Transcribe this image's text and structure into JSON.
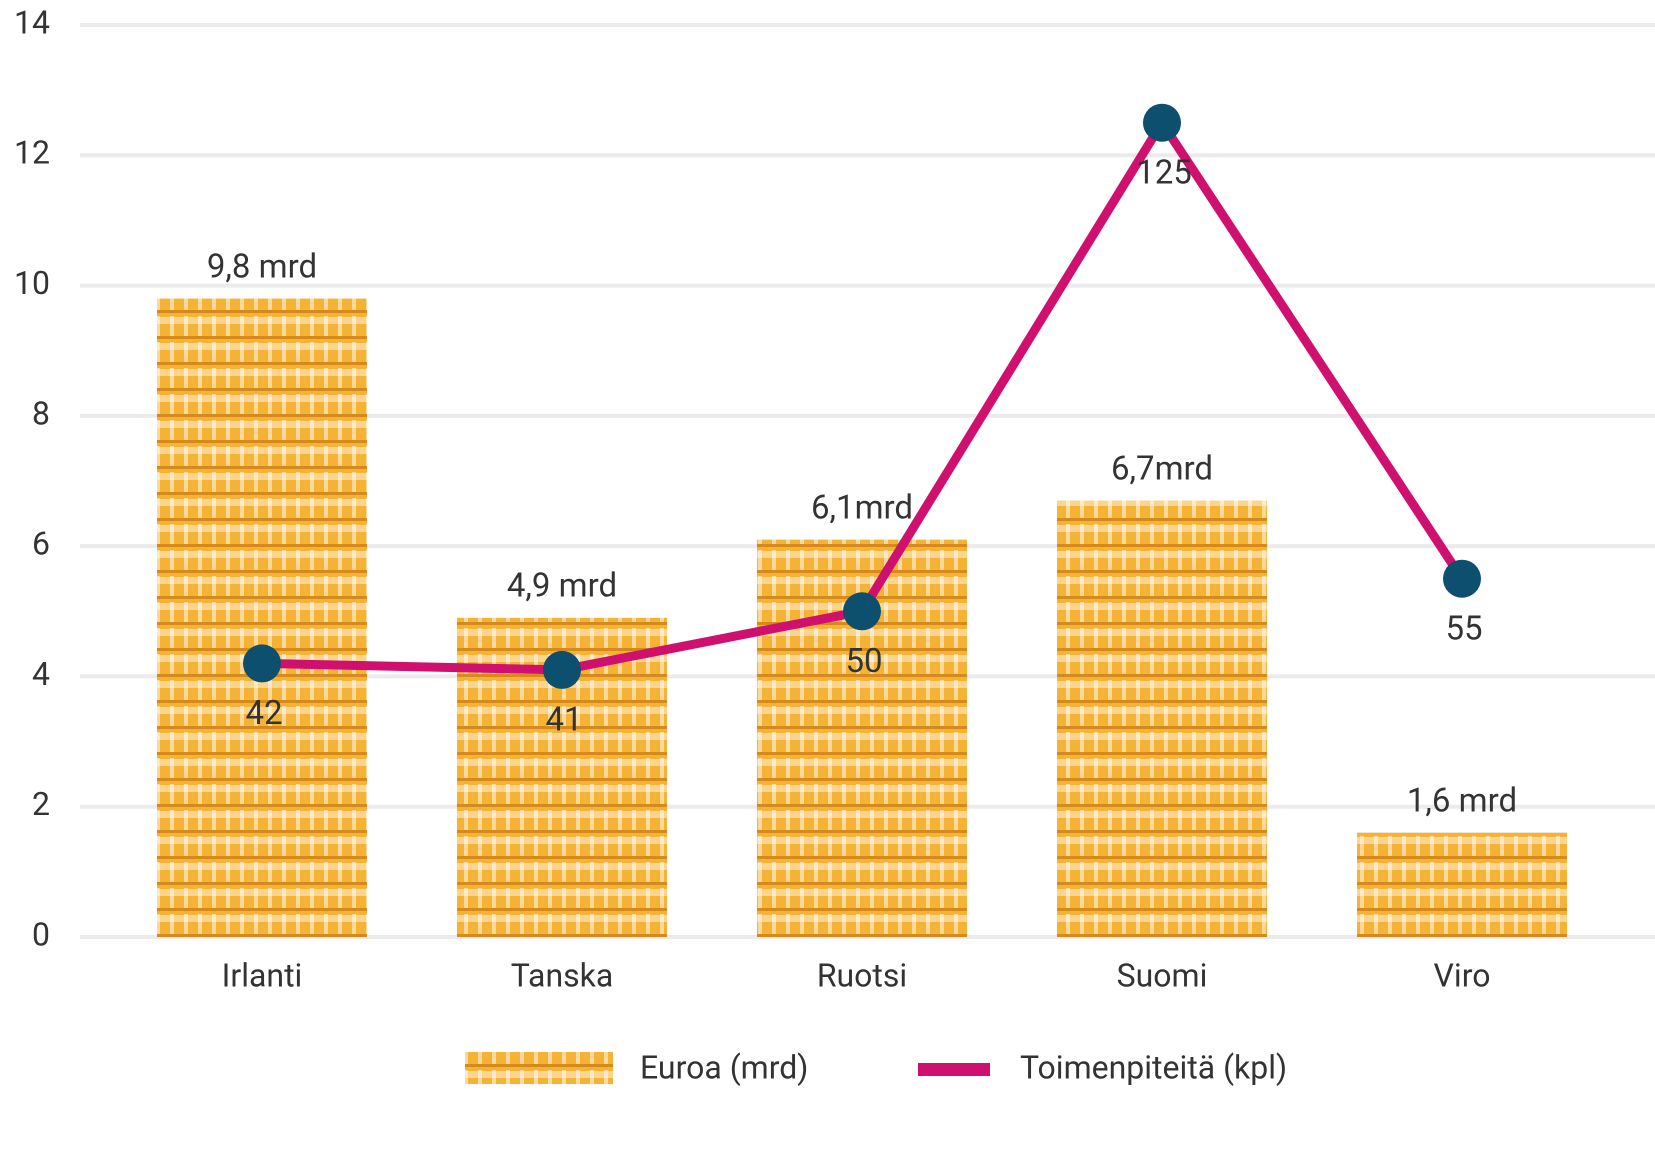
{
  "chart_data": {
    "type": "combo",
    "categories": [
      "Irlanti",
      "Tanska",
      "Ruotsi",
      "Suomi",
      "Viro"
    ],
    "series": [
      {
        "name": "Euroa (mrd)",
        "type": "bar",
        "color": "#f5b335",
        "values": [
          9.8,
          4.9,
          6.1,
          6.7,
          1.6
        ],
        "value_labels": [
          "9,8 mrd",
          "4,9 mrd",
          "6,1mrd",
          "6,7mrd",
          "1,6 mrd"
        ]
      },
      {
        "name": "Toimenpiteitä (kpl)",
        "type": "line",
        "axis": "y2",
        "color": "#d0106e",
        "marker_color": "#0d4f6e",
        "values": [
          42,
          41,
          50,
          125,
          55
        ]
      }
    ],
    "ylim": [
      0,
      14
    ],
    "yticks": [
      0,
      2,
      4,
      6,
      8,
      10,
      12,
      14
    ],
    "y2lim": [
      0,
      140
    ],
    "grid": true,
    "legend": "bottom"
  }
}
